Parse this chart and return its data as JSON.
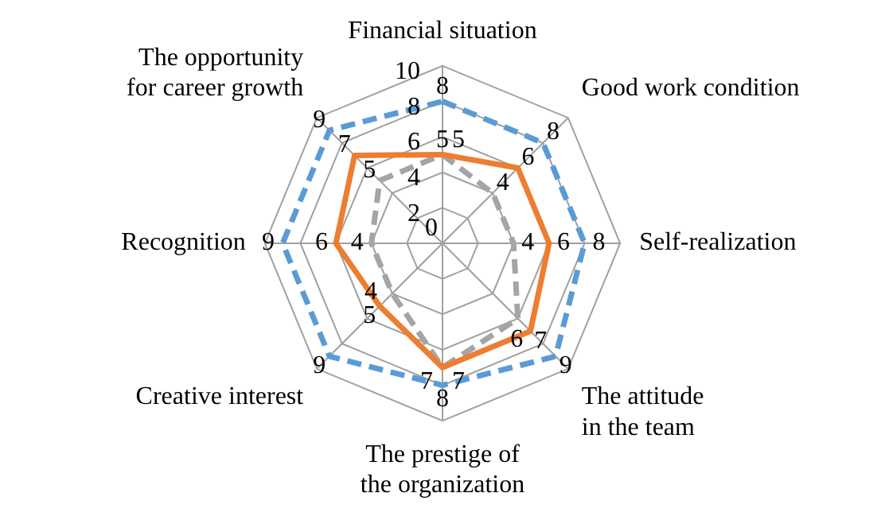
{
  "chart_data": {
    "type": "radar",
    "categories": [
      "Financial situation",
      "Good work condition",
      "Self-realization",
      "The attitude in the team",
      "The prestige of the organization",
      "Creative interest",
      "Recognition",
      "The opportunity for career growth"
    ],
    "series": [
      {
        "color": "#5b9bd5",
        "line_style": "dashed",
        "values": [
          8,
          8,
          8,
          9,
          8,
          9,
          9,
          9
        ]
      },
      {
        "color": "#ed7d31",
        "line_style": "solid",
        "values": [
          5,
          6,
          6,
          7,
          7,
          5,
          6,
          7
        ]
      },
      {
        "color": "#a5a5a5",
        "line_style": "dashed",
        "values": [
          5,
          4,
          4,
          6,
          7,
          4,
          4,
          5
        ]
      }
    ],
    "ylim": [
      0,
      10
    ],
    "yticks": [
      0,
      2,
      4,
      6,
      8,
      10
    ],
    "grid": true,
    "legend": false,
    "marker": "none",
    "data_labels": true
  }
}
